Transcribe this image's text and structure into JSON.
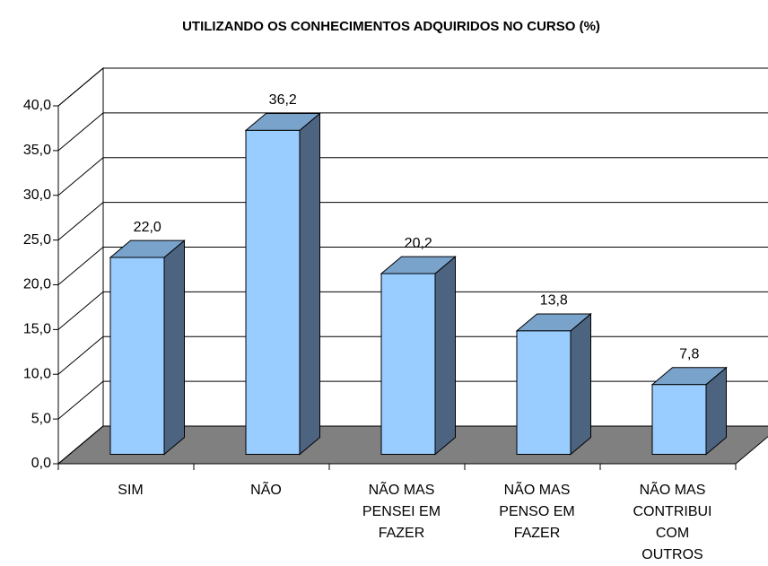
{
  "chart_data": {
    "type": "bar3d",
    "title": "UTILIZANDO OS  CONHECIMENTOS ADQUIRIDOS NO CURSO (%)",
    "categories": [
      "SIM",
      "NÃO",
      "NÃO MAS PENSEI EM FAZER",
      "NÃO MAS PENSO EM FAZER",
      "NÃO MAS CONTRIBUI COM OUTROS"
    ],
    "values": [
      22.0,
      36.2,
      20.2,
      13.8,
      7.8
    ],
    "value_labels": [
      "22,0",
      "36,2",
      "20,2",
      "13,8",
      "7,8"
    ],
    "color": "#99ccff",
    "ylim": [
      0,
      40
    ],
    "yticks": [
      {
        "value": 0,
        "label": "0,0"
      },
      {
        "value": 5,
        "label": "5,0"
      },
      {
        "value": 10,
        "label": "10,0"
      },
      {
        "value": 15,
        "label": "15,0"
      },
      {
        "value": 20,
        "label": "20,0"
      },
      {
        "value": 25,
        "label": "25,0"
      },
      {
        "value": 30,
        "label": "30,0"
      },
      {
        "value": 35,
        "label": "35,0"
      },
      {
        "value": 40,
        "label": "40,0"
      }
    ],
    "grid": true
  }
}
